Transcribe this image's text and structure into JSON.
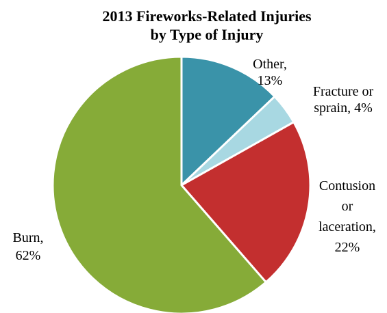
{
  "chart_data": {
    "type": "pie",
    "title": "2013 Fireworks-Related Injuries by Type of Injury",
    "title_lines": [
      "2013 Fireworks-Related Injuries",
      "by Type of Injury"
    ],
    "start": "12 o'clock",
    "direction": "clockwise",
    "legend": "none",
    "slices": [
      {
        "category": "Other",
        "value": 13,
        "unit": "%",
        "color": "#3A93A9",
        "label_lines": [
          "Other,",
          "13%"
        ]
      },
      {
        "category": "Fracture or sprain",
        "value": 4,
        "unit": "%",
        "color": "#A8D8E2",
        "label_lines": [
          "Fracture or",
          "sprain, 4%"
        ]
      },
      {
        "category": "Contusion or laceration",
        "value": 22,
        "unit": "%",
        "color": "#C32F2F",
        "label_lines": [
          "Contusion",
          "or",
          "laceration,",
          "22%"
        ]
      },
      {
        "category": "Burn",
        "value": 62,
        "unit": "%",
        "color": "#86AB38",
        "label_lines": [
          "Burn,",
          "62%"
        ]
      }
    ]
  }
}
